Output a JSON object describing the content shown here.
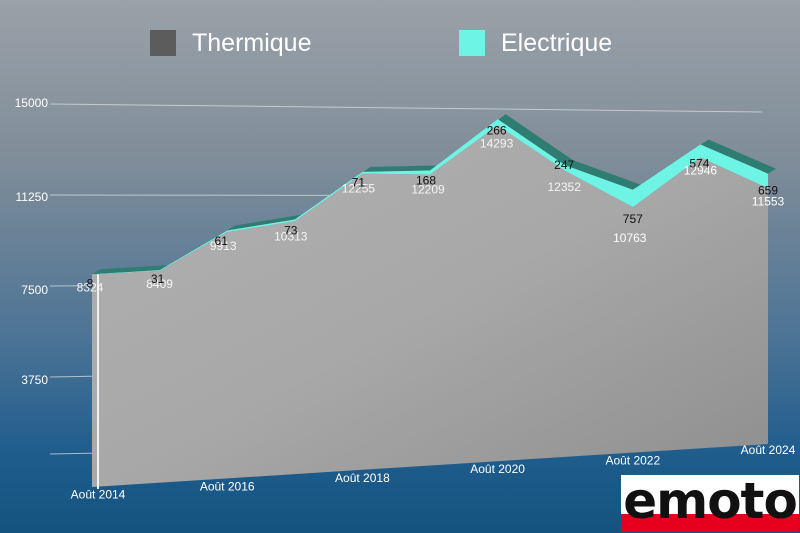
{
  "legend": [
    {
      "label": "Thermique",
      "color": "#5c5c5c"
    },
    {
      "label": "Electrique",
      "color": "#6ef4e4"
    }
  ],
  "logo": {
    "text": "emoto"
  },
  "chart_data": {
    "type": "area",
    "stacked": true,
    "perspective_3d": true,
    "grid": true,
    "legend_position": "top",
    "categories": [
      "Août 2014",
      "",
      "Août 2016",
      "",
      "Août 2018",
      "",
      "Août 2020",
      "",
      "Août 2022",
      "",
      "Août 2024"
    ],
    "yticks": [
      "15000",
      "11250",
      "7500",
      "3750"
    ],
    "ylim": [
      0,
      15000
    ],
    "series": [
      {
        "name": "Thermique",
        "color": "#a9a9a9",
        "values": [
          8324,
          8409,
          9913,
          10313,
          12255,
          12209,
          14293,
          12352,
          10763,
          12946,
          11553
        ]
      },
      {
        "name": "Electrique",
        "color": "#6ef4e4",
        "values": [
          8,
          31,
          61,
          73,
          71,
          168,
          266,
          247,
          757,
          574,
          659
        ]
      }
    ],
    "label_texts": {
      "Thermique": [
        "8324",
        "8409",
        "9913",
        "10313",
        "12255",
        "12209",
        "14293",
        "12352",
        "10763",
        "12946",
        "11553"
      ],
      "Electrique": [
        "8",
        "31",
        "61",
        "73",
        "71",
        "168",
        "266",
        "247",
        "757",
        "574",
        "659"
      ]
    }
  }
}
